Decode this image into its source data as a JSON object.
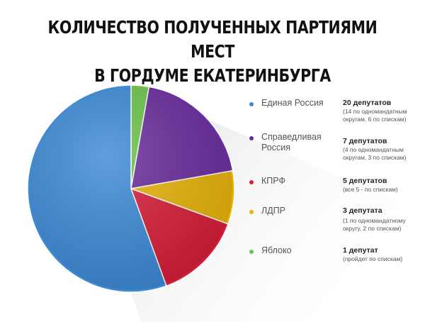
{
  "chart_data": {
    "type": "pie",
    "title_lines": [
      "КОЛИЧЕСТВО ПОЛУЧЕННЫХ ПАРТИЯМИ МЕСТ",
      "В ГОРДУМЕ ЕКАТЕРИНБУРГА"
    ],
    "slices": [
      {
        "label": "Единая Россия",
        "value": 20,
        "color": "#3d8ad6",
        "count_text": "20 депутатов",
        "detail": "(14 по одномандатным округам, 6 по спискам)"
      },
      {
        "label": "Справедливая Россия",
        "value": 7,
        "color": "#6a2d9e",
        "count_text": "7 депутатов",
        "detail": "(4 по одномандатным округам, 3 по спискам)"
      },
      {
        "label": "КПРФ",
        "value": 5,
        "color": "#d81e3a",
        "count_text": "5 депутатов",
        "detail": "(все 5 - по спискам)"
      },
      {
        "label": "ЛДПР",
        "value": 3,
        "color": "#e8b40a",
        "count_text": "3 депутата",
        "detail": "(1 по одномандатному округу, 2 по спискам)"
      },
      {
        "label": "Яблоко",
        "value": 1,
        "color": "#6cc44a",
        "count_text": "1 депутат",
        "detail": "(пройдет по спискам)"
      }
    ]
  }
}
